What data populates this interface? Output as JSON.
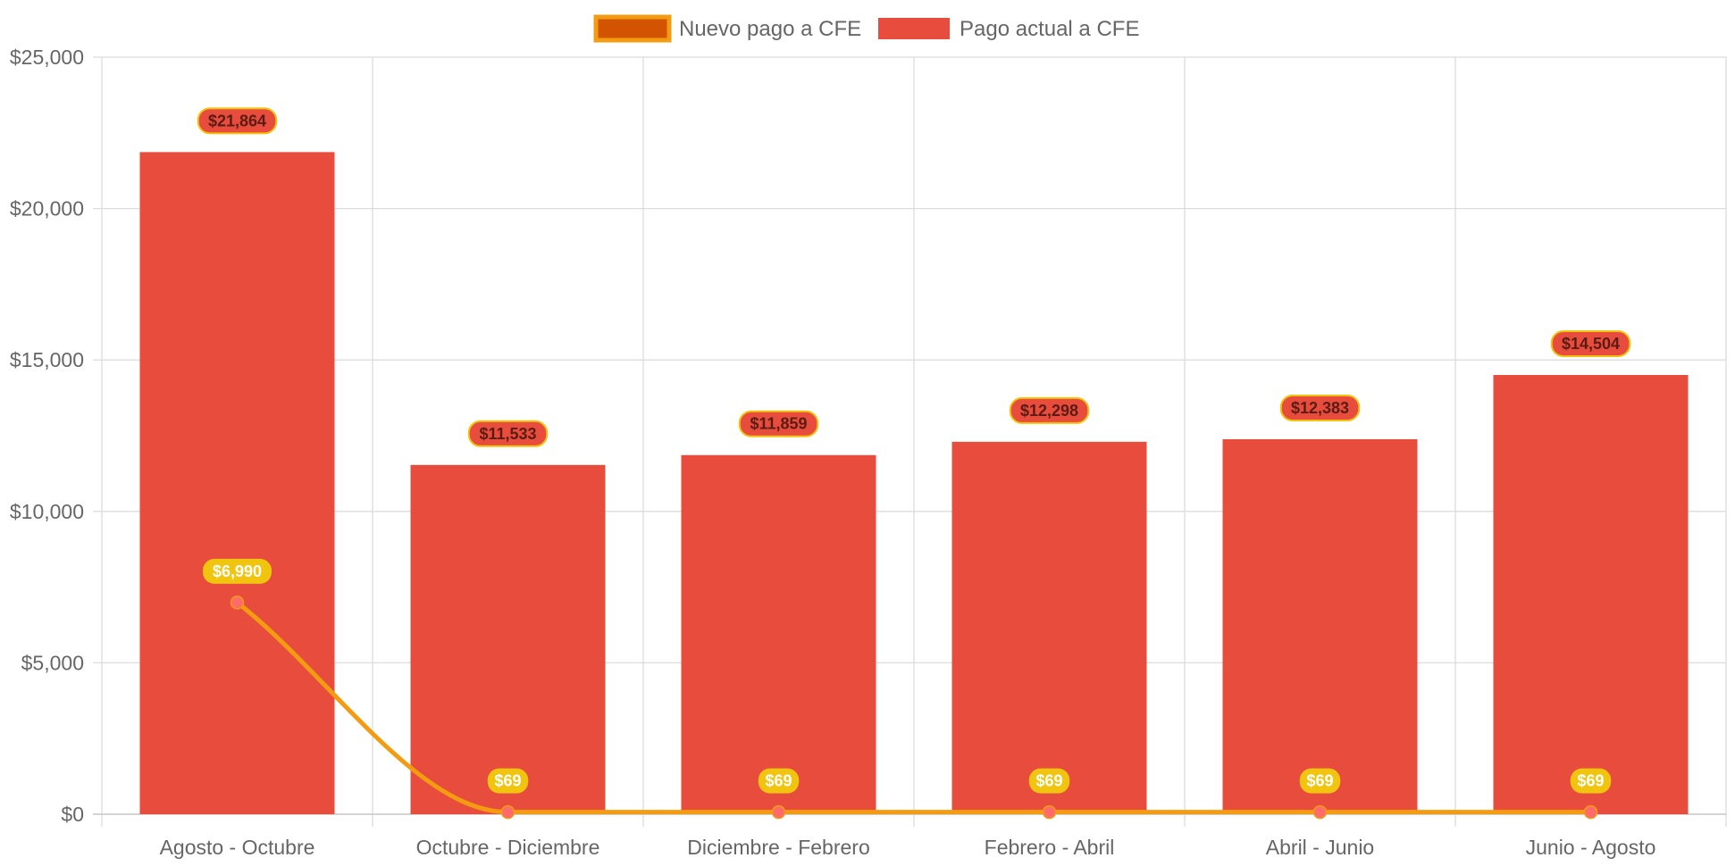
{
  "chart_data": {
    "type": "bar",
    "title": "",
    "xlabel": "",
    "ylabel": "",
    "ylim": [
      0,
      25000
    ],
    "y_ticks": [
      {
        "value": 0,
        "label": "$0"
      },
      {
        "value": 5000,
        "label": "$5,000"
      },
      {
        "value": 10000,
        "label": "$10,000"
      },
      {
        "value": 15000,
        "label": "$15,000"
      },
      {
        "value": 20000,
        "label": "$20,000"
      },
      {
        "value": 25000,
        "label": "$25,000"
      }
    ],
    "categories": [
      "Agosto - Octubre",
      "Octubre - Diciembre",
      "Diciembre - Febrero",
      "Febrero - Abril",
      "Abril - Junio",
      "Junio - Agosto"
    ],
    "grid": true,
    "legend_position": "top-center",
    "series": [
      {
        "name": "Nuevo pago a CFE",
        "kind": "line",
        "color": "#f39c12",
        "legend_fill": "#d35400",
        "point_color": "#ff6b6b",
        "label_bg": "#f1c40f",
        "values": [
          6990,
          69,
          69,
          69,
          69,
          69
        ],
        "data_labels": [
          "$6,990",
          "$69",
          "$69",
          "$69",
          "$69",
          "$69"
        ]
      },
      {
        "name": "Pago actual a CFE",
        "kind": "bar",
        "color": "#e74c3c",
        "label_border": "#f1c40f",
        "values": [
          21864,
          11533,
          11859,
          12298,
          12383,
          14504
        ],
        "data_labels": [
          "$21,864",
          "$11,533",
          "$11,859",
          "$12,298",
          "$12,383",
          "$14,504"
        ]
      }
    ]
  }
}
